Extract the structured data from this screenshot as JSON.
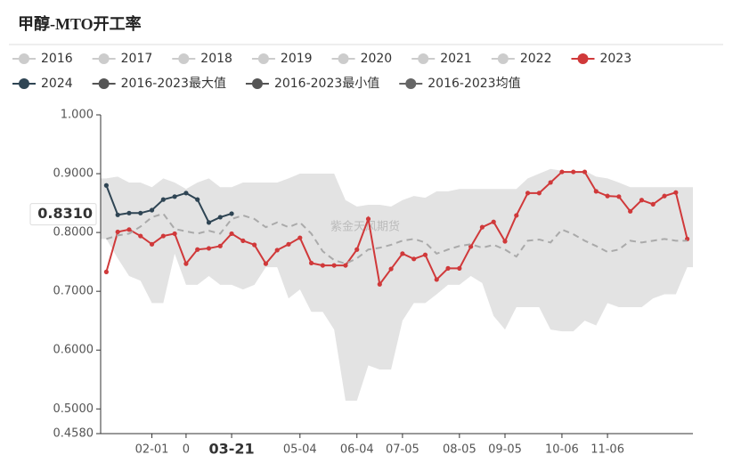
{
  "chart_data": {
    "type": "line",
    "title": "甲醇-MTO开工率",
    "watermark": "紫金天风期货",
    "categories": [
      null,
      null,
      null,
      null,
      "02-01",
      null,
      null,
      "0",
      null,
      null,
      null,
      "03-21",
      null,
      null,
      null,
      null,
      null,
      "05-04",
      null,
      null,
      null,
      null,
      "06-04",
      null,
      null,
      null,
      "07-05",
      null,
      null,
      null,
      null,
      "08-05",
      null,
      null,
      null,
      "09-05",
      null,
      null,
      null,
      null,
      "10-06",
      null,
      null,
      null,
      "11-06",
      null,
      null,
      null,
      null,
      null,
      null,
      null
    ],
    "ylim": [
      0.458,
      1.0
    ],
    "yticks": [
      {
        "value": 0.458,
        "label": "0.4580"
      },
      {
        "value": 0.5,
        "label": "0.5000"
      },
      {
        "value": 0.6,
        "label": "0.6000"
      },
      {
        "value": 0.7,
        "label": "0.7000"
      },
      {
        "value": 0.8,
        "label": "0.8000"
      },
      {
        "value": 0.9,
        "label": "0.9000"
      },
      {
        "value": 1.0,
        "label": "1.000"
      }
    ],
    "axis_pointer": {
      "y": {
        "value": 0.831,
        "label": "0.8310"
      },
      "x_index": 11
    },
    "series": [
      {
        "name": "2016",
        "color": "#cccccc",
        "inactive": true
      },
      {
        "name": "2017",
        "color": "#cccccc",
        "inactive": true
      },
      {
        "name": "2018",
        "color": "#cccccc",
        "inactive": true
      },
      {
        "name": "2019",
        "color": "#cccccc",
        "inactive": true
      },
      {
        "name": "2020",
        "color": "#cccccc",
        "inactive": true
      },
      {
        "name": "2021",
        "color": "#cccccc",
        "inactive": true
      },
      {
        "name": "2022",
        "color": "#cccccc",
        "inactive": true
      },
      {
        "name": "2023",
        "color": "#d0393a",
        "style": "line",
        "values": [
          0.733,
          0.801,
          0.805,
          0.794,
          0.78,
          0.794,
          0.798,
          0.747,
          0.771,
          0.773,
          0.777,
          0.798,
          0.786,
          0.779,
          0.747,
          0.77,
          0.78,
          0.791,
          0.748,
          0.744,
          0.744,
          0.744,
          0.771,
          0.823,
          0.712,
          0.738,
          0.764,
          0.755,
          0.762,
          0.72,
          0.739,
          0.739,
          0.776,
          0.809,
          0.818,
          0.785,
          0.829,
          0.867,
          0.867,
          0.885,
          0.903,
          0.903,
          0.903,
          0.87,
          0.862,
          0.861,
          0.836,
          0.855,
          0.848,
          0.862,
          0.868,
          0.789
        ]
      },
      {
        "name": "2024",
        "color": "#2f4554",
        "style": "line",
        "values": [
          0.88,
          0.83,
          0.833,
          0.833,
          0.838,
          0.856,
          0.861,
          0.867,
          0.856,
          0.817,
          0.826,
          0.832,
          null,
          null,
          null,
          null,
          null,
          null,
          null,
          null,
          null,
          null,
          null,
          null,
          null,
          null,
          null,
          null,
          null,
          null,
          null,
          null,
          null,
          null,
          null,
          null,
          null,
          null,
          null,
          null,
          null,
          null,
          null,
          null,
          null,
          null,
          null,
          null,
          null,
          null,
          null,
          null
        ]
      },
      {
        "name": "2016-2023最大值",
        "color": "#555555",
        "style": "band-top",
        "fill": "#e3e3e3",
        "values": [
          0.892,
          0.895,
          0.885,
          0.885,
          0.877,
          0.892,
          0.885,
          0.874,
          0.885,
          0.892,
          0.877,
          0.877,
          0.885,
          0.885,
          0.885,
          0.885,
          0.892,
          0.9,
          0.9,
          0.9,
          0.9,
          0.855,
          0.844,
          0.847,
          0.847,
          0.844,
          0.855,
          0.862,
          0.859,
          0.87,
          0.87,
          0.874,
          0.874,
          0.874,
          0.874,
          0.874,
          0.874,
          0.892,
          0.9,
          0.908,
          0.905,
          0.903,
          0.905,
          0.895,
          0.892,
          0.885,
          0.877,
          0.877,
          0.877,
          0.877,
          0.877,
          0.877
        ]
      },
      {
        "name": "2016-2023最小值",
        "color": "#555555",
        "style": "band-bottom",
        "fill": "#ffffff",
        "values": [
          0.789,
          0.756,
          0.726,
          0.718,
          0.68,
          0.68,
          0.764,
          0.711,
          0.711,
          0.726,
          0.711,
          0.711,
          0.703,
          0.711,
          0.741,
          0.741,
          0.688,
          0.703,
          0.665,
          0.665,
          0.635,
          0.514,
          0.514,
          0.574,
          0.567,
          0.567,
          0.65,
          0.68,
          0.68,
          0.695,
          0.711,
          0.711,
          0.726,
          0.714,
          0.658,
          0.635,
          0.673,
          0.673,
          0.673,
          0.635,
          0.632,
          0.632,
          0.65,
          0.642,
          0.68,
          0.673,
          0.673,
          0.673,
          0.688,
          0.695,
          0.695,
          0.741
        ]
      },
      {
        "name": "2016-2023均值",
        "color": "#666666",
        "style": "dashed",
        "line_color": "#aaaaaa",
        "values": [
          0.789,
          0.795,
          0.798,
          0.81,
          0.826,
          0.832,
          0.806,
          0.802,
          0.798,
          0.803,
          0.798,
          0.823,
          0.829,
          0.823,
          0.809,
          0.817,
          0.809,
          0.817,
          0.798,
          0.768,
          0.753,
          0.747,
          0.756,
          0.771,
          0.774,
          0.779,
          0.786,
          0.789,
          0.783,
          0.764,
          0.771,
          0.777,
          0.78,
          0.774,
          0.779,
          0.771,
          0.759,
          0.786,
          0.788,
          0.783,
          0.805,
          0.797,
          0.786,
          0.777,
          0.767,
          0.771,
          0.786,
          0.783,
          0.786,
          0.789,
          0.786,
          0.786
        ]
      }
    ]
  }
}
